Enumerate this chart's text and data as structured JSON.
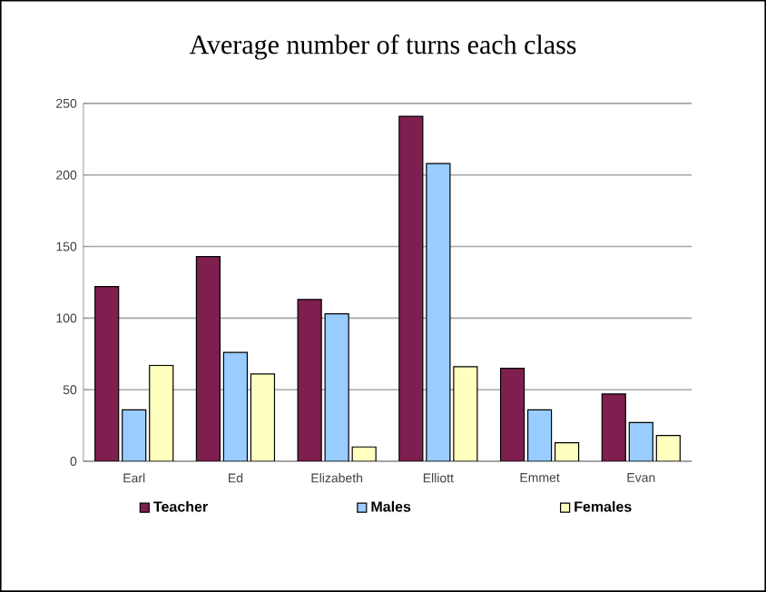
{
  "chart_data": {
    "type": "bar",
    "title": "Average number of turns each class",
    "categories": [
      "Earl",
      "Ed",
      "Elizabeth",
      "Elliott",
      "Emmet",
      "Evan"
    ],
    "series": [
      {
        "name": "Teacher",
        "color": "#7f1f4f",
        "values": [
          122,
          143,
          113,
          241,
          65,
          47
        ]
      },
      {
        "name": "Males",
        "color": "#99ccff",
        "values": [
          36,
          76,
          103,
          208,
          36,
          27
        ]
      },
      {
        "name": "Females",
        "color": "#ffffc0",
        "values": [
          67,
          61,
          10,
          66,
          13,
          18
        ]
      }
    ],
    "ylim": [
      0,
      250
    ],
    "yticks": [
      0,
      50,
      100,
      150,
      200,
      250
    ],
    "grid": "y",
    "legend": "bottom"
  }
}
